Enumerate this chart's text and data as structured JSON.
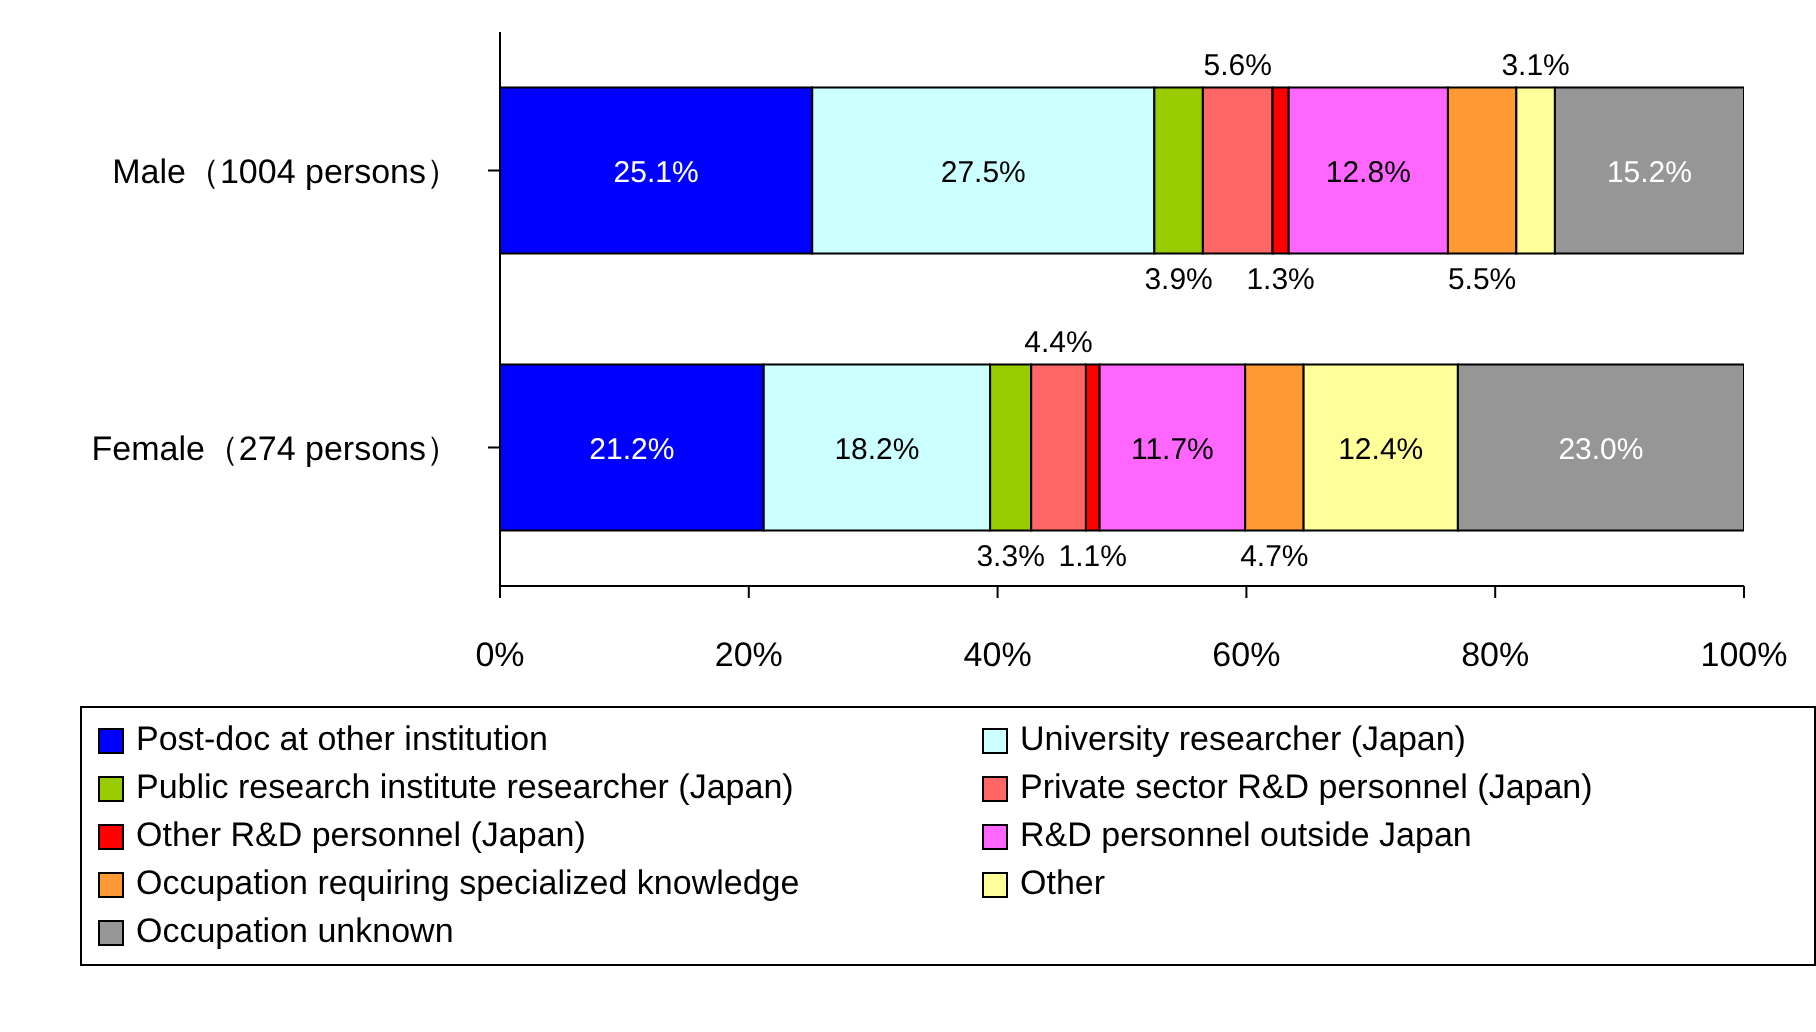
{
  "chart_data": {
    "type": "bar",
    "orientation": "horizontal",
    "stacked": true,
    "legend": "bottom",
    "categories": [
      "Male（1004 persons）",
      "Female（274 persons）"
    ],
    "xlim": [
      0,
      100
    ],
    "xticks": [
      {
        "value": 0,
        "label": "0%"
      },
      {
        "value": 20,
        "label": "20%"
      },
      {
        "value": 40,
        "label": "40%"
      },
      {
        "value": 60,
        "label": "60%"
      },
      {
        "value": 80,
        "label": "80%"
      },
      {
        "value": 100,
        "label": "100%"
      }
    ],
    "series": [
      {
        "name": "Post-doc at other institution",
        "color": "#0000ff",
        "values": [
          25.1,
          21.2
        ],
        "value_labels": [
          "25.1%",
          "21.2%"
        ]
      },
      {
        "name": "University researcher (Japan)",
        "color": "#ccffff",
        "values": [
          27.5,
          18.2
        ],
        "value_labels": [
          "27.5%",
          "18.2%"
        ]
      },
      {
        "name": "Public research institute researcher (Japan)",
        "color": "#99cc00",
        "values": [
          3.9,
          3.3
        ],
        "value_labels": [
          "3.9%",
          "3.3%"
        ]
      },
      {
        "name": "Private sector R&D personnel (Japan)",
        "color": "#ff6666",
        "values": [
          5.6,
          4.4
        ],
        "value_labels": [
          "5.6%",
          "4.4%"
        ]
      },
      {
        "name": "Other R&D personnel (Japan)",
        "color": "#ff0000",
        "values": [
          1.3,
          1.1
        ],
        "value_labels": [
          "1.3%",
          "1.1%"
        ]
      },
      {
        "name": "R&D personnel outside Japan",
        "color": "#ff66ff",
        "values": [
          12.8,
          11.7
        ],
        "value_labels": [
          "12.8%",
          "11.7%"
        ]
      },
      {
        "name": "Occupation requiring specialized knowledge",
        "color": "#ff9933",
        "values": [
          5.5,
          4.7
        ],
        "value_labels": [
          "5.5%",
          "4.7%"
        ]
      },
      {
        "name": "Other",
        "color": "#ffff99",
        "values": [
          3.1,
          12.4
        ],
        "value_labels": [
          "3.1%",
          "12.4%"
        ]
      },
      {
        "name": "Occupation unknown",
        "color": "#969696",
        "values": [
          15.2,
          23.0
        ],
        "value_labels": [
          "15.2%",
          "23.0%"
        ]
      }
    ]
  }
}
